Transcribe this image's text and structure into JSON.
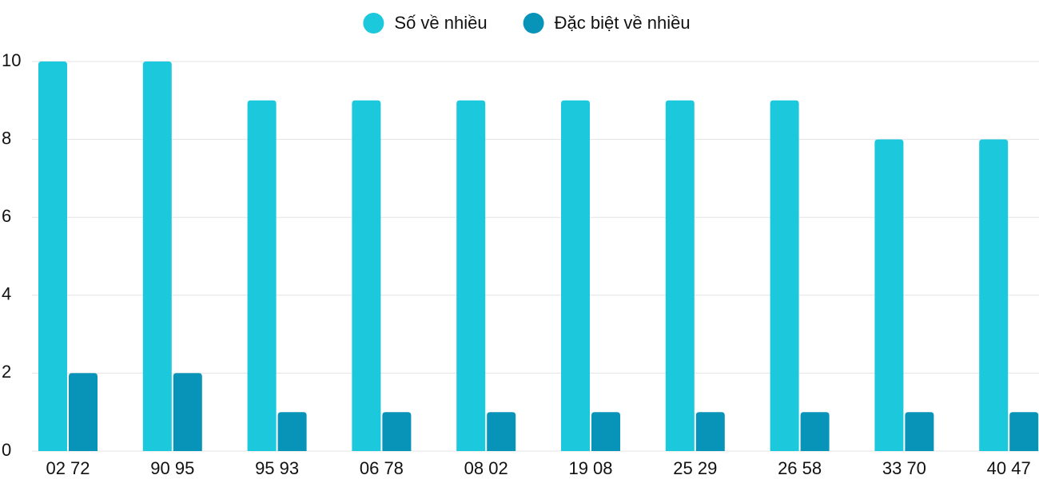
{
  "chart_data": {
    "type": "bar",
    "categories": [
      "02 72",
      "90 95",
      "95 93",
      "06 78",
      "08 02",
      "19 08",
      "25 29",
      "26 58",
      "33 70",
      "40 47"
    ],
    "series": [
      {
        "name": "Số về nhiều",
        "color": "#1bc8dc",
        "values": [
          10,
          10,
          9,
          9,
          9,
          9,
          9,
          9,
          8,
          8
        ]
      },
      {
        "name": "Đặc biệt về nhiều",
        "color": "#0894b8",
        "values": [
          2,
          2,
          1,
          1,
          1,
          1,
          1,
          1,
          1,
          1
        ]
      }
    ],
    "ylim": [
      0,
      10
    ],
    "yticks": [
      0,
      2,
      4,
      6,
      8,
      10
    ],
    "grid": true,
    "legend": "top"
  }
}
